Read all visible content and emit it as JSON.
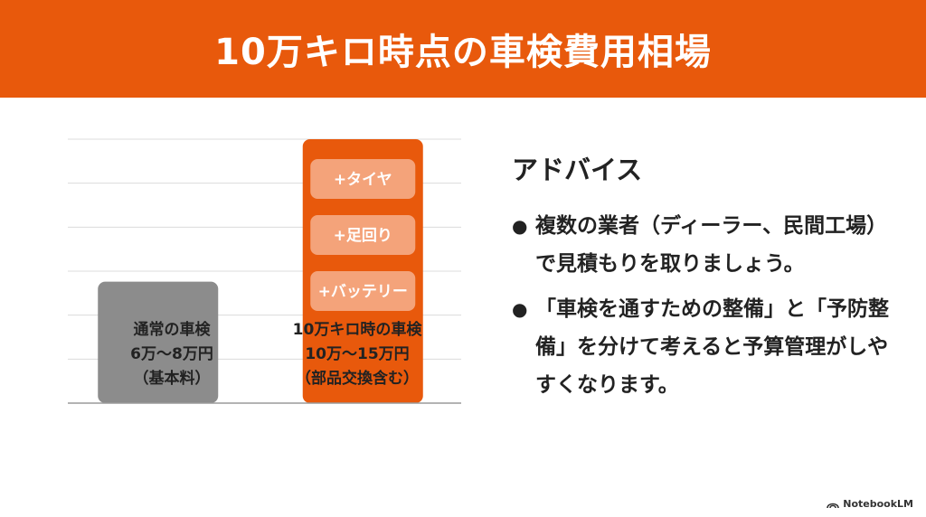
{
  "header": {
    "title": "10万キロ時点の車検費用相場"
  },
  "chart_data": {
    "type": "bar",
    "categories": [
      "通常の車検",
      "10万キロ時の車検"
    ],
    "cost_labels": [
      "6万〜8万円",
      "10万〜15万円"
    ],
    "notes": [
      "（基本料）",
      "（部品交換含む）"
    ],
    "values": [
      4.6,
      10
    ],
    "ylim": [
      0,
      10
    ],
    "grid": true,
    "colors": [
      "#8c8c8c",
      "#e8590c"
    ],
    "chip_color": "#f4a37a",
    "chips": [
      "+タイヤ",
      "+足回り",
      "+バッテリー"
    ]
  },
  "advice": {
    "title": "アドバイス",
    "items": [
      "複数の業者（ディーラー、民間工場）で見積もりを取りましょう。",
      "「車検を通すための整備」と「予防整備」を分けて考えると予算管理がしやすくなります。"
    ]
  },
  "brand": {
    "name": "NotebookLM",
    "icon": "notebooklm-logo-icon"
  }
}
